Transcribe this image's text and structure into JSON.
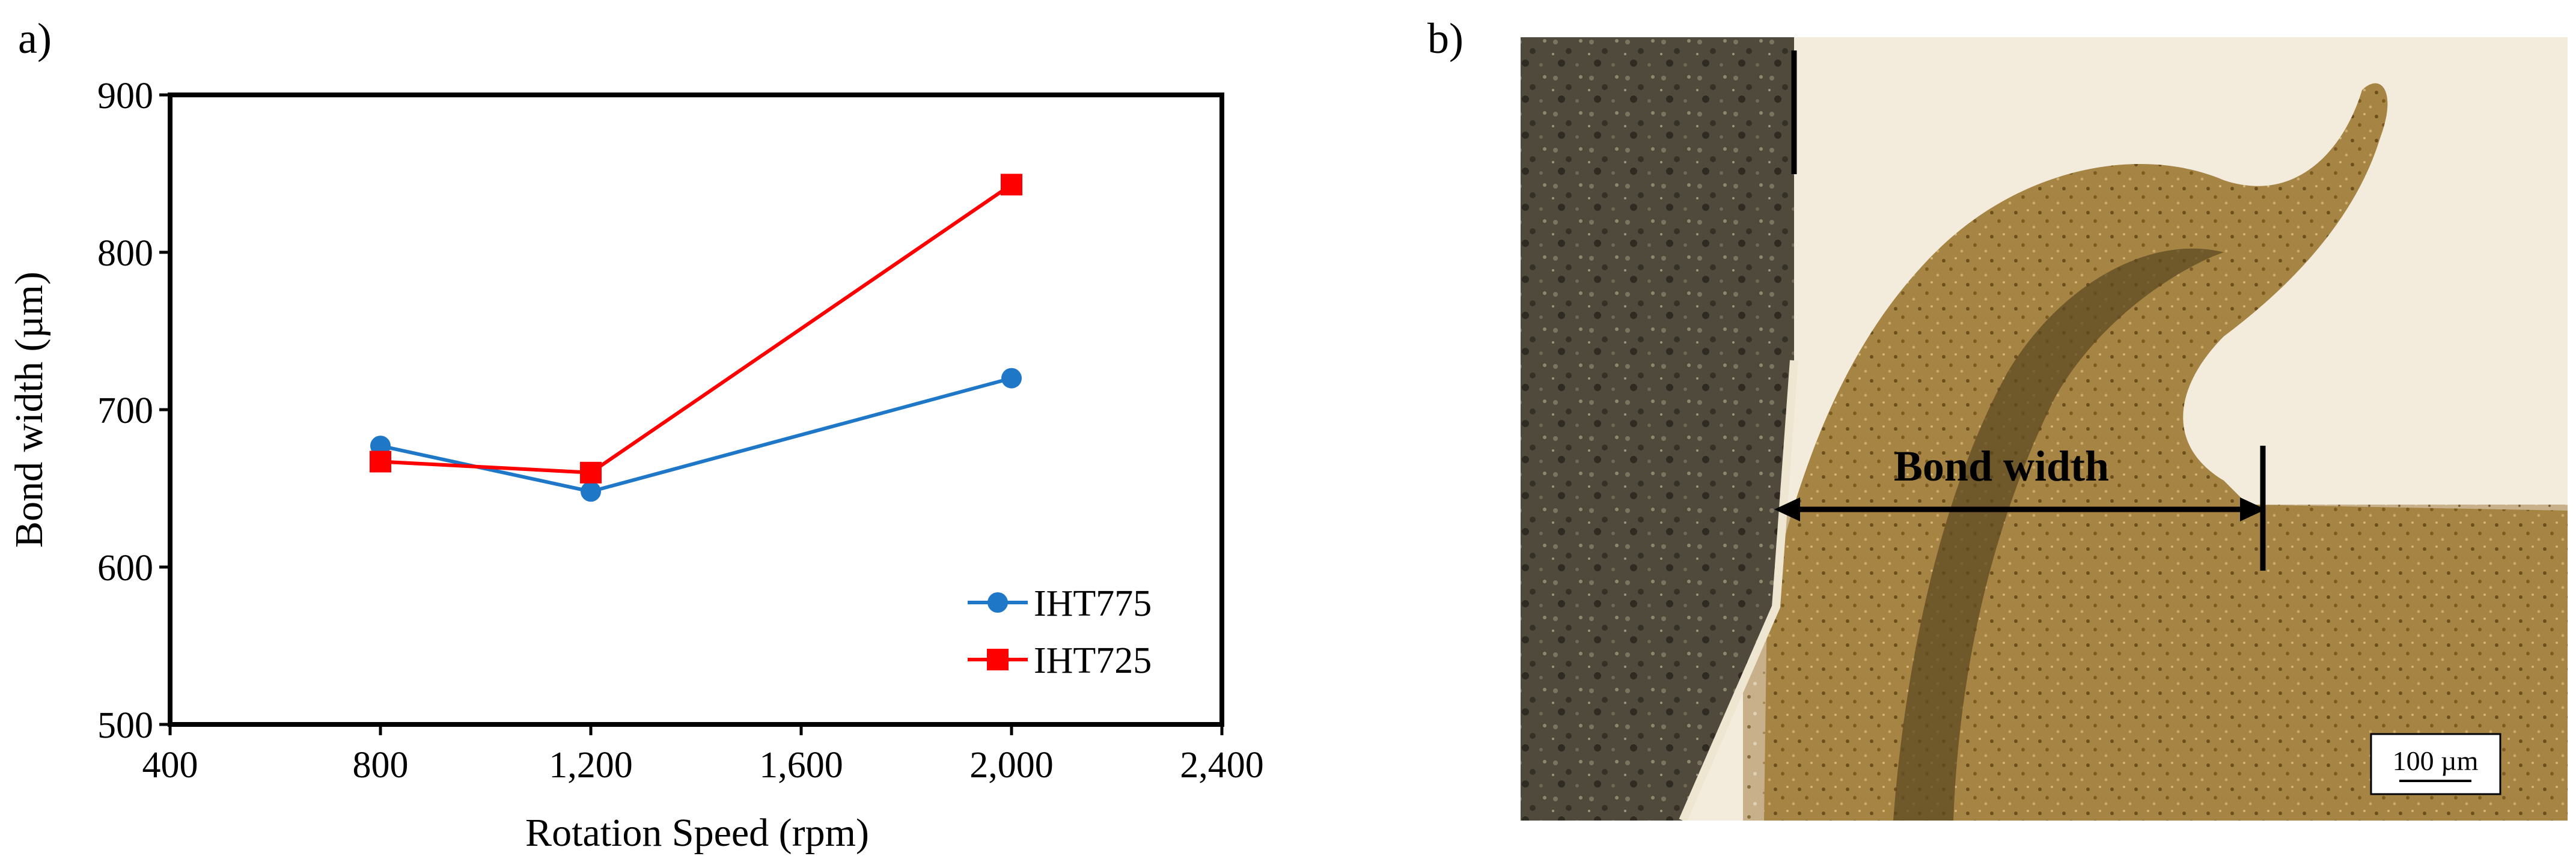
{
  "panels": {
    "a_label": "a)",
    "b_label": "b)"
  },
  "chart_data": {
    "type": "line",
    "title": "",
    "xlabel": "Rotation Speed (rpm)",
    "ylabel": "Bond width (µm)",
    "xlim": [
      400,
      2400
    ],
    "ylim": [
      500,
      900
    ],
    "xticks": [
      400,
      800,
      1200,
      1600,
      2000,
      2400
    ],
    "xtick_labels": [
      "400",
      "800",
      "1,200",
      "1,600",
      "2,000",
      "2,400"
    ],
    "yticks": [
      500,
      600,
      700,
      800,
      900
    ],
    "ytick_labels": [
      "500",
      "600",
      "700",
      "800",
      "900"
    ],
    "grid": false,
    "legend_position": "bottom-right",
    "series": [
      {
        "name": "IHT775",
        "color": "#1f77c8",
        "marker": "circle",
        "x": [
          800,
          1200,
          2000
        ],
        "y": [
          677,
          648,
          720
        ]
      },
      {
        "name": "IHT725",
        "color": "#ff0000",
        "marker": "square",
        "x": [
          800,
          1200,
          2000
        ],
        "y": [
          667,
          660,
          843
        ]
      }
    ]
  },
  "micrograph": {
    "annotation": "Bond width",
    "scale_bar": "100 µm"
  }
}
